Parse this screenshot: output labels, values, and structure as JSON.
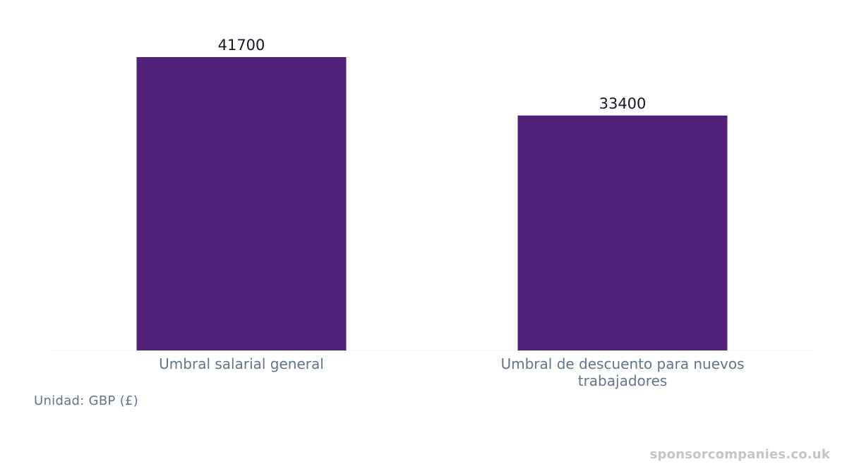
{
  "chart_data": {
    "type": "bar",
    "categories": [
      "Umbral salarial general",
      "Umbral de descuento para nuevos trabajadores"
    ],
    "category_lines": [
      [
        "Umbral salarial general"
      ],
      [
        "Umbral de descuento para nuevos",
        "trabajadores"
      ]
    ],
    "values": [
      41700,
      33400
    ],
    "data_labels": [
      "41700",
      "33400"
    ],
    "ylim": [
      0,
      41700
    ],
    "grid": false,
    "legend": "none",
    "bar_color": "#52217a",
    "baseline_color": "#eef0f3"
  },
  "unit_note": "Unidad: GBP (£)",
  "watermark": "sponsorcompanies.co.uk"
}
